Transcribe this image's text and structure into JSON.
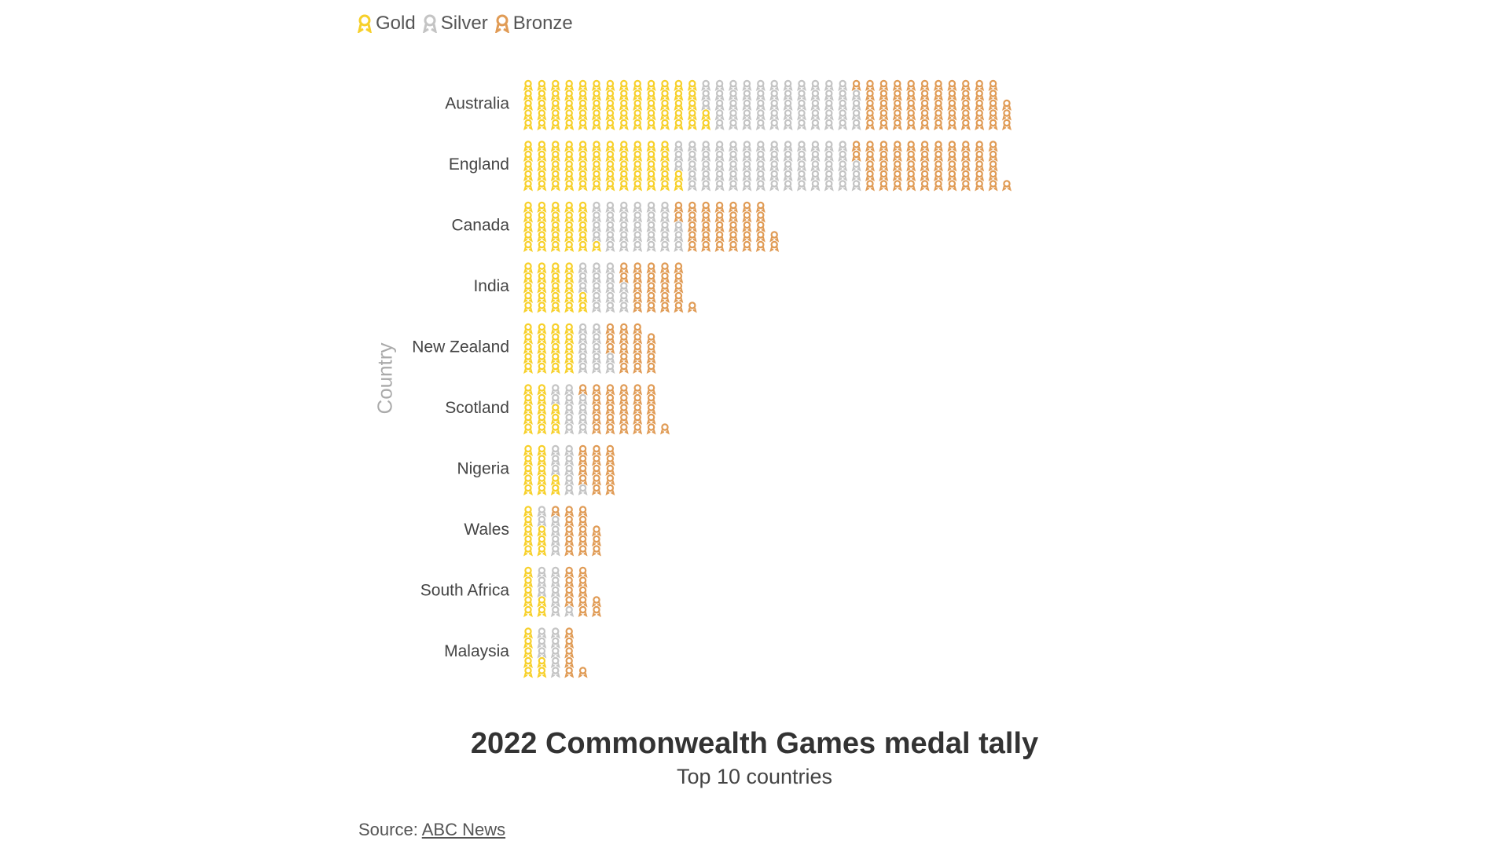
{
  "legend": {
    "gold": "Gold",
    "silver": "Silver",
    "bronze": "Bronze"
  },
  "colors": {
    "gold": "#f7d02a",
    "silver": "#c4c4c4",
    "bronze": "#e09b55",
    "text": "#444444"
  },
  "chart_data": {
    "type": "bar",
    "subtype": "stacked-pictogram",
    "icon": "medal-icon",
    "title": "2022 Commonwealth Games medal tally",
    "subtitle": "Top 10 countries",
    "ylabel": "Country",
    "categories": [
      "Australia",
      "England",
      "Canada",
      "India",
      "New Zealand",
      "Scotland",
      "Nigeria",
      "Wales",
      "South Africa",
      "Malaysia"
    ],
    "series": [
      {
        "name": "Gold",
        "values": [
          67,
          57,
          26,
          22,
          20,
          13,
          12,
          8,
          7,
          7
        ]
      },
      {
        "name": "Silver",
        "values": [
          57,
          66,
          32,
          16,
          12,
          11,
          9,
          6,
          9,
          8
        ]
      },
      {
        "name": "Bronze",
        "values": [
          54,
          53,
          34,
          23,
          17,
          27,
          14,
          14,
          11,
          6
        ]
      }
    ],
    "legend_position": "top-left",
    "grid": false
  },
  "source": {
    "label": "Source:",
    "link_text": "ABC News"
  }
}
